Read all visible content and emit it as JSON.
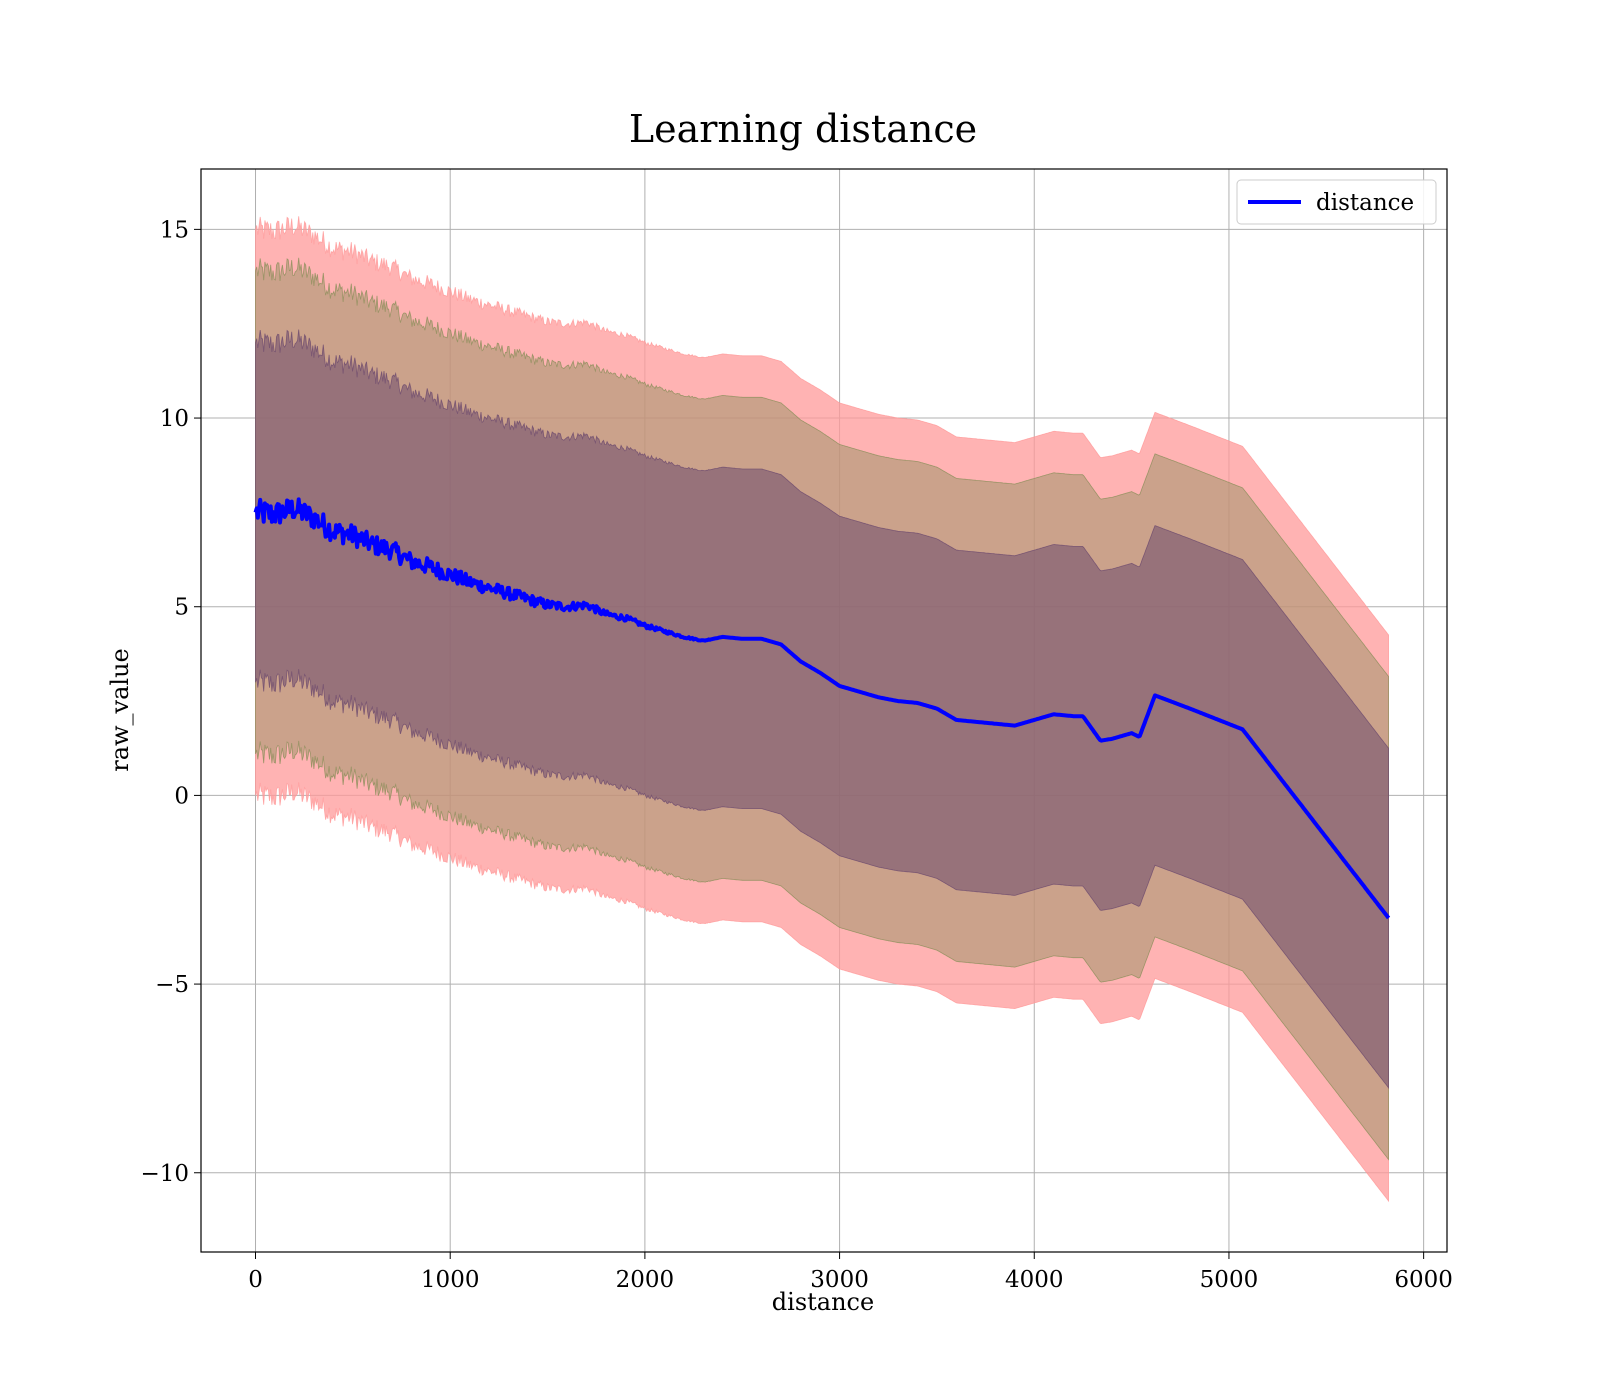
{
  "chart_data": {
    "type": "line",
    "title": "Learning distance",
    "xlabel": "distance",
    "ylabel": "raw_value",
    "xlim": [
      -280,
      6120
    ],
    "ylim": [
      -12.1,
      16.6
    ],
    "xticks": [
      0,
      1000,
      2000,
      3000,
      4000,
      5000,
      6000
    ],
    "yticks": [
      -10,
      -5,
      0,
      5,
      10,
      15
    ],
    "xtick_labels": [
      "0",
      "1000",
      "2000",
      "3000",
      "4000",
      "5000",
      "6000"
    ],
    "ytick_labels": [
      "−10",
      "−5",
      "0",
      "5",
      "10",
      "15"
    ],
    "grid": true,
    "legend": {
      "placement": "top-right",
      "entries": [
        {
          "label": "distance",
          "color": "#0000ff"
        }
      ]
    },
    "series": [
      {
        "name": "distance",
        "color": "#0000ff",
        "x": [
          0,
          100,
          200,
          300,
          400,
          500,
          600,
          700,
          800,
          900,
          1000,
          1100,
          1200,
          1300,
          1400,
          1500,
          1600,
          1700,
          1800,
          1900,
          2000,
          2100,
          2200,
          2300,
          2400,
          2500,
          2600,
          2700,
          2800,
          2900,
          3000,
          3100,
          3200,
          3300,
          3400,
          3500,
          3600,
          3700,
          3800,
          3900,
          4000,
          4100,
          4200,
          4250,
          4340,
          4400,
          4500,
          4540,
          4620,
          4800,
          5070,
          5820
        ],
        "y": [
          7.5,
          7.45,
          7.6,
          7.35,
          7.0,
          6.9,
          6.65,
          6.5,
          6.2,
          6.05,
          5.85,
          5.65,
          5.5,
          5.35,
          5.2,
          5.05,
          5.0,
          5.05,
          4.8,
          4.7,
          4.5,
          4.35,
          4.2,
          4.1,
          4.2,
          4.15,
          4.15,
          4.0,
          3.55,
          3.25,
          2.9,
          2.75,
          2.6,
          2.5,
          2.45,
          2.3,
          2.0,
          1.95,
          1.9,
          1.85,
          2.0,
          2.15,
          2.1,
          2.1,
          1.45,
          1.5,
          1.65,
          1.55,
          2.65,
          2.3,
          1.75,
          -3.25
        ]
      }
    ],
    "bands": [
      {
        "color": "#ff9999",
        "opacity": 0.75,
        "lower_offset": -7.5,
        "upper_offset": 7.5
      },
      {
        "color": "#8b8e5a",
        "opacity": 0.45,
        "lower_offset": -6.4,
        "upper_offset": 6.4
      },
      {
        "color": "#6e4b6e",
        "opacity": 0.55,
        "lower_offset": -4.5,
        "upper_offset": 4.5
      }
    ],
    "noise": {
      "amplitude": 0.35,
      "fade_end": 2400
    }
  }
}
